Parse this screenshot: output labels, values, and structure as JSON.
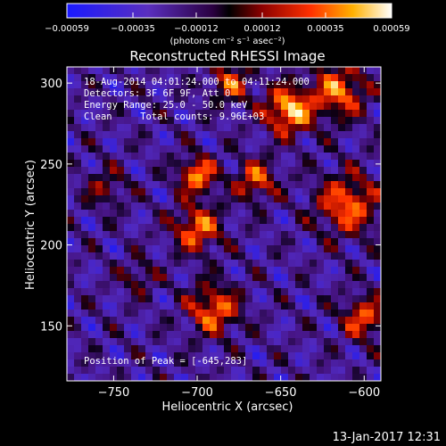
{
  "chart_data": {
    "type": "heatmap",
    "title": "Reconstructed RHESSI Image",
    "xlabel": "Heliocentric X (arcsec)",
    "ylabel": "Heliocentric Y (arcsec)",
    "xlim": [
      -778,
      -590
    ],
    "ylim": [
      116,
      310
    ],
    "x_ticks": [
      {
        "value": -750,
        "label": "−750"
      },
      {
        "value": -700,
        "label": "−700"
      },
      {
        "value": -650,
        "label": "−650"
      },
      {
        "value": -600,
        "label": "−600"
      }
    ],
    "y_ticks": [
      {
        "value": 150,
        "label": "150"
      },
      {
        "value": 200,
        "label": "200"
      },
      {
        "value": 250,
        "label": "250"
      },
      {
        "value": 300,
        "label": "300"
      }
    ],
    "colorbar": {
      "range": [
        -0.00059,
        0.00059
      ],
      "ticks": [
        {
          "value": -0.00059,
          "label": "−0.00059"
        },
        {
          "value": -0.00035,
          "label": "−0.00035"
        },
        {
          "value": -0.00012,
          "label": "−0.00012"
        },
        {
          "value": 0.00012,
          "label": "0.00012"
        },
        {
          "value": 0.00035,
          "label": "0.00035"
        },
        {
          "value": 0.00059,
          "label": "0.00059"
        }
      ],
      "units_label": "(photons cm⁻² s⁻¹ asec⁻²)"
    },
    "info_lines": [
      "18-Aug-2014 04:01:24.000 to 04:11:24.000",
      "Detectors: 3F 6F 9F, Att 0",
      "Energy Range: 25.0 - 50.0 keV",
      "Clean     Total counts: 9.96E+03"
    ],
    "peak_label": "Position of Peak = [-645,283]",
    "peak": [
      -645,
      283
    ]
  },
  "footer": {
    "timestamp": "13-Jan-2017 12:31"
  }
}
